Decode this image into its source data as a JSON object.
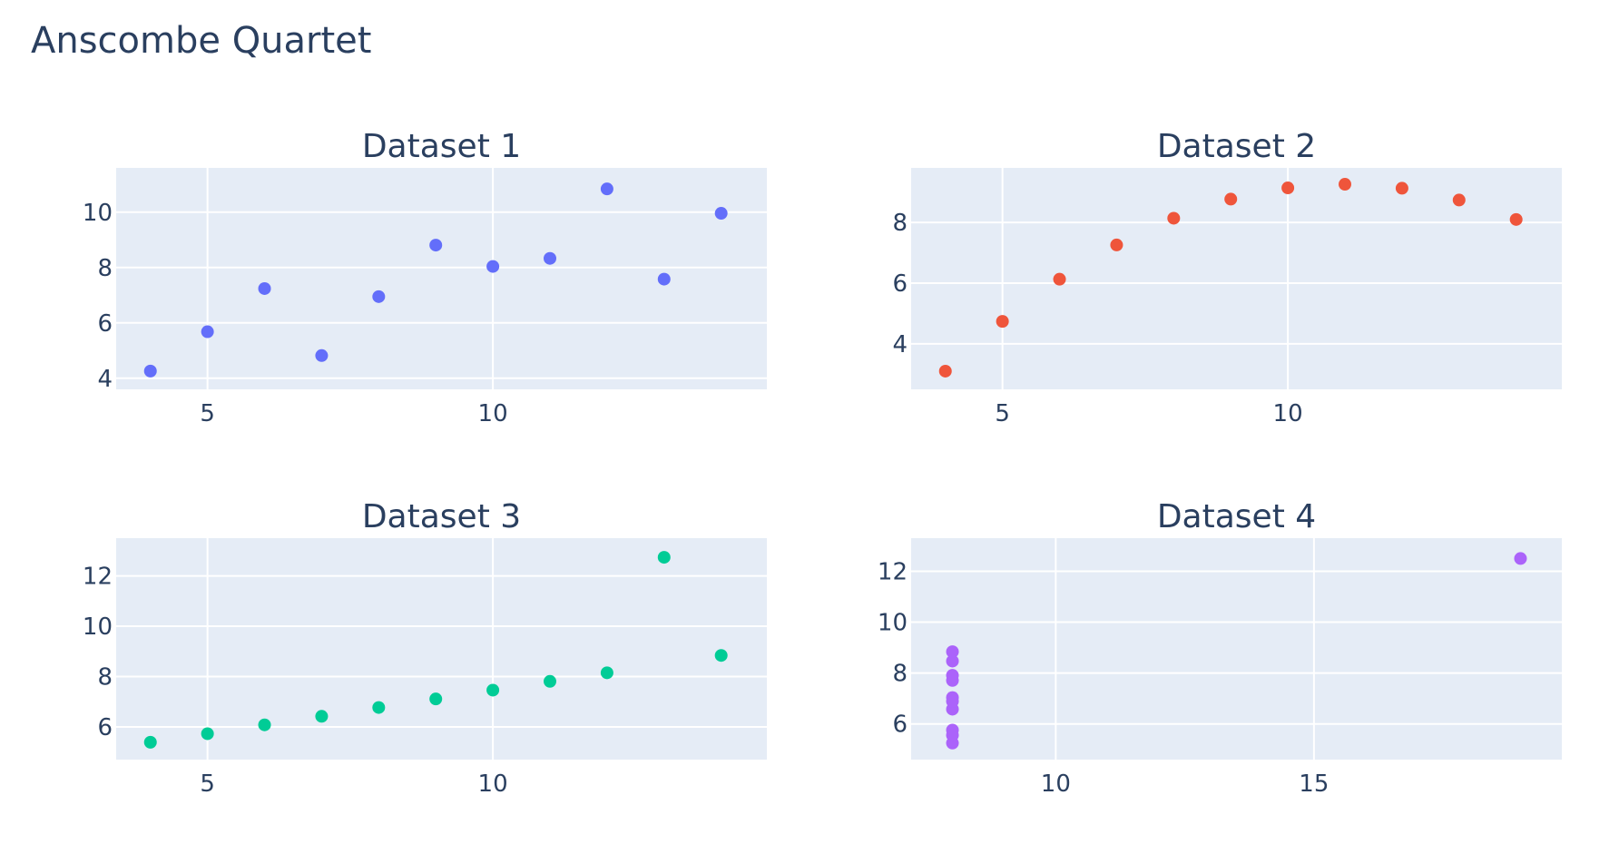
{
  "title": "Anscombe Quartet",
  "chart_data": [
    {
      "type": "scatter",
      "title": "Dataset 1",
      "xlim": [
        3.4,
        14.8
      ],
      "ylim": [
        3.6,
        11.6
      ],
      "xticks": [
        5,
        10
      ],
      "yticks": [
        4,
        6,
        8,
        10
      ],
      "color": "#636efa",
      "series": [
        {
          "x": [
            4,
            5,
            6,
            7,
            8,
            9,
            10,
            11,
            12,
            13,
            14
          ],
          "y": [
            4.26,
            5.68,
            7.24,
            4.82,
            6.95,
            8.81,
            8.04,
            8.33,
            10.84,
            7.58,
            9.96
          ]
        }
      ],
      "grid": true
    },
    {
      "type": "scatter",
      "title": "Dataset 2",
      "xlim": [
        3.4,
        14.8
      ],
      "ylim": [
        2.5,
        9.8
      ],
      "xticks": [
        5,
        10
      ],
      "yticks": [
        4,
        6,
        8
      ],
      "color": "#ef553b",
      "series": [
        {
          "x": [
            4,
            5,
            6,
            7,
            8,
            9,
            10,
            11,
            12,
            13,
            14
          ],
          "y": [
            3.1,
            4.74,
            6.13,
            7.26,
            8.14,
            8.77,
            9.14,
            9.26,
            9.13,
            8.74,
            8.1
          ]
        }
      ],
      "grid": true
    },
    {
      "type": "scatter",
      "title": "Dataset 3",
      "xlim": [
        3.4,
        14.8
      ],
      "ylim": [
        4.7,
        13.5
      ],
      "xticks": [
        5,
        10
      ],
      "yticks": [
        6,
        8,
        10,
        12
      ],
      "color": "#00cc96",
      "series": [
        {
          "x": [
            4,
            5,
            6,
            7,
            8,
            9,
            10,
            11,
            12,
            13,
            14
          ],
          "y": [
            5.39,
            5.73,
            6.08,
            6.42,
            6.77,
            7.11,
            7.46,
            7.81,
            8.15,
            12.74,
            8.84
          ]
        }
      ],
      "grid": true
    },
    {
      "type": "scatter",
      "title": "Dataset 4",
      "xlim": [
        7.2,
        19.8
      ],
      "ylim": [
        4.6,
        13.3
      ],
      "xticks": [
        10,
        15
      ],
      "yticks": [
        6,
        8,
        10,
        12
      ],
      "color": "#ab63fa",
      "series": [
        {
          "x": [
            8,
            8,
            8,
            8,
            8,
            8,
            8,
            19,
            8,
            8,
            8
          ],
          "y": [
            6.58,
            5.76,
            7.71,
            8.84,
            8.47,
            7.04,
            5.25,
            12.5,
            5.56,
            7.91,
            6.89
          ]
        }
      ],
      "grid": true
    }
  ]
}
